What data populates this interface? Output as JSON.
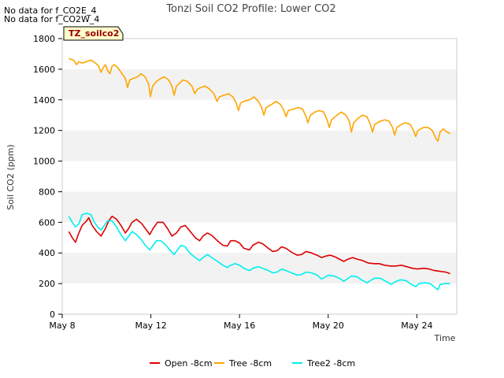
{
  "notes": [
    "No data for f_CO2E_4",
    "No data for f_CO2W_4"
  ],
  "badge": "TZ_soilco2",
  "chart_data": {
    "type": "line",
    "title": "Tonzi Soil CO2 Profile: Lower CO2",
    "xlabel": "Time",
    "ylabel": "Soil CO2 (ppm)",
    "ylim": [
      0,
      1800
    ],
    "xlim": [
      8,
      25.8
    ],
    "x_unit": "day of May",
    "yticks": [
      0,
      200,
      400,
      600,
      800,
      1000,
      1200,
      1400,
      1600,
      1800
    ],
    "xticks": [
      {
        "value": 8,
        "label": "May 8"
      },
      {
        "value": 12,
        "label": "May 12"
      },
      {
        "value": 16,
        "label": "May 16"
      },
      {
        "value": 20,
        "label": "May 20"
      },
      {
        "value": 24,
        "label": "May 24"
      }
    ],
    "grid": "alternating horizontal bands",
    "legend_position": "bottom",
    "series": [
      {
        "name": "Open -8cm",
        "color": "#dd0000",
        "points": [
          [
            8.3,
            540
          ],
          [
            8.45,
            500
          ],
          [
            8.6,
            470
          ],
          [
            8.75,
            530
          ],
          [
            8.9,
            580
          ],
          [
            9.1,
            610
          ],
          [
            9.2,
            630
          ],
          [
            9.35,
            580
          ],
          [
            9.55,
            540
          ],
          [
            9.75,
            510
          ],
          [
            9.95,
            560
          ],
          [
            10.1,
            610
          ],
          [
            10.25,
            640
          ],
          [
            10.45,
            620
          ],
          [
            10.65,
            580
          ],
          [
            10.85,
            530
          ],
          [
            11.0,
            560
          ],
          [
            11.15,
            600
          ],
          [
            11.35,
            620
          ],
          [
            11.6,
            590
          ],
          [
            11.8,
            550
          ],
          [
            11.95,
            520
          ],
          [
            12.1,
            560
          ],
          [
            12.3,
            600
          ],
          [
            12.55,
            600
          ],
          [
            12.75,
            560
          ],
          [
            12.95,
            510
          ],
          [
            13.15,
            530
          ],
          [
            13.35,
            570
          ],
          [
            13.55,
            580
          ],
          [
            13.75,
            545
          ],
          [
            14.0,
            500
          ],
          [
            14.2,
            480
          ],
          [
            14.35,
            510
          ],
          [
            14.55,
            530
          ],
          [
            14.75,
            515
          ],
          [
            15.0,
            480
          ],
          [
            15.25,
            450
          ],
          [
            15.45,
            445
          ],
          [
            15.6,
            480
          ],
          [
            15.8,
            480
          ],
          [
            16.0,
            465
          ],
          [
            16.2,
            430
          ],
          [
            16.45,
            420
          ],
          [
            16.6,
            450
          ],
          [
            16.85,
            470
          ],
          [
            17.05,
            460
          ],
          [
            17.3,
            430
          ],
          [
            17.5,
            410
          ],
          [
            17.7,
            415
          ],
          [
            17.9,
            440
          ],
          [
            18.1,
            430
          ],
          [
            18.35,
            405
          ],
          [
            18.6,
            385
          ],
          [
            18.8,
            390
          ],
          [
            19.0,
            410
          ],
          [
            19.25,
            400
          ],
          [
            19.5,
            385
          ],
          [
            19.7,
            370
          ],
          [
            19.9,
            380
          ],
          [
            20.1,
            385
          ],
          [
            20.3,
            375
          ],
          [
            20.5,
            360
          ],
          [
            20.7,
            345
          ],
          [
            20.9,
            360
          ],
          [
            21.1,
            370
          ],
          [
            21.3,
            360
          ],
          [
            21.55,
            350
          ],
          [
            21.8,
            335
          ],
          [
            22.05,
            330
          ],
          [
            22.3,
            330
          ],
          [
            22.55,
            320
          ],
          [
            22.8,
            315
          ],
          [
            23.05,
            315
          ],
          [
            23.3,
            320
          ],
          [
            23.55,
            310
          ],
          [
            23.8,
            300
          ],
          [
            24.05,
            295
          ],
          [
            24.3,
            300
          ],
          [
            24.55,
            295
          ],
          [
            24.8,
            285
          ],
          [
            25.05,
            280
          ],
          [
            25.3,
            275
          ],
          [
            25.5,
            265
          ]
        ]
      },
      {
        "name": "Tree -8cm",
        "color": "#ffa500",
        "points": [
          [
            8.3,
            1670
          ],
          [
            8.5,
            1660
          ],
          [
            8.65,
            1630
          ],
          [
            8.75,
            1650
          ],
          [
            8.9,
            1640
          ],
          [
            9.1,
            1650
          ],
          [
            9.3,
            1660
          ],
          [
            9.5,
            1640
          ],
          [
            9.65,
            1620
          ],
          [
            9.75,
            1580
          ],
          [
            9.85,
            1610
          ],
          [
            9.95,
            1630
          ],
          [
            10.05,
            1590
          ],
          [
            10.15,
            1570
          ],
          [
            10.25,
            1620
          ],
          [
            10.35,
            1630
          ],
          [
            10.5,
            1610
          ],
          [
            10.7,
            1570
          ],
          [
            10.85,
            1540
          ],
          [
            10.95,
            1480
          ],
          [
            11.05,
            1530
          ],
          [
            11.2,
            1540
          ],
          [
            11.4,
            1550
          ],
          [
            11.55,
            1570
          ],
          [
            11.75,
            1550
          ],
          [
            11.9,
            1500
          ],
          [
            11.98,
            1420
          ],
          [
            12.08,
            1490
          ],
          [
            12.25,
            1520
          ],
          [
            12.45,
            1540
          ],
          [
            12.6,
            1550
          ],
          [
            12.8,
            1530
          ],
          [
            12.95,
            1490
          ],
          [
            13.05,
            1430
          ],
          [
            13.15,
            1490
          ],
          [
            13.3,
            1510
          ],
          [
            13.45,
            1530
          ],
          [
            13.65,
            1520
          ],
          [
            13.85,
            1490
          ],
          [
            13.98,
            1440
          ],
          [
            14.1,
            1470
          ],
          [
            14.25,
            1480
          ],
          [
            14.45,
            1490
          ],
          [
            14.65,
            1470
          ],
          [
            14.85,
            1440
          ],
          [
            14.98,
            1390
          ],
          [
            15.1,
            1420
          ],
          [
            15.3,
            1430
          ],
          [
            15.5,
            1440
          ],
          [
            15.7,
            1420
          ],
          [
            15.85,
            1380
          ],
          [
            15.95,
            1330
          ],
          [
            16.05,
            1380
          ],
          [
            16.2,
            1390
          ],
          [
            16.45,
            1400
          ],
          [
            16.65,
            1420
          ],
          [
            16.85,
            1390
          ],
          [
            17.0,
            1350
          ],
          [
            17.1,
            1300
          ],
          [
            17.2,
            1350
          ],
          [
            17.45,
            1370
          ],
          [
            17.65,
            1390
          ],
          [
            17.85,
            1370
          ],
          [
            18.0,
            1330
          ],
          [
            18.1,
            1290
          ],
          [
            18.2,
            1330
          ],
          [
            18.45,
            1340
          ],
          [
            18.65,
            1350
          ],
          [
            18.85,
            1340
          ],
          [
            19.0,
            1290
          ],
          [
            19.08,
            1250
          ],
          [
            19.2,
            1300
          ],
          [
            19.4,
            1320
          ],
          [
            19.6,
            1330
          ],
          [
            19.8,
            1320
          ],
          [
            19.95,
            1270
          ],
          [
            20.05,
            1220
          ],
          [
            20.15,
            1270
          ],
          [
            20.4,
            1300
          ],
          [
            20.6,
            1320
          ],
          [
            20.8,
            1300
          ],
          [
            20.95,
            1260
          ],
          [
            21.05,
            1190
          ],
          [
            21.15,
            1250
          ],
          [
            21.35,
            1280
          ],
          [
            21.55,
            1300
          ],
          [
            21.75,
            1290
          ],
          [
            21.9,
            1240
          ],
          [
            22.0,
            1190
          ],
          [
            22.1,
            1240
          ],
          [
            22.35,
            1260
          ],
          [
            22.55,
            1270
          ],
          [
            22.75,
            1260
          ],
          [
            22.9,
            1220
          ],
          [
            23.0,
            1170
          ],
          [
            23.1,
            1220
          ],
          [
            23.3,
            1240
          ],
          [
            23.5,
            1250
          ],
          [
            23.7,
            1240
          ],
          [
            23.85,
            1200
          ],
          [
            23.95,
            1160
          ],
          [
            24.05,
            1200
          ],
          [
            24.3,
            1220
          ],
          [
            24.5,
            1220
          ],
          [
            24.7,
            1200
          ],
          [
            24.85,
            1150
          ],
          [
            24.95,
            1130
          ],
          [
            25.05,
            1190
          ],
          [
            25.2,
            1210
          ],
          [
            25.35,
            1190
          ],
          [
            25.5,
            1180
          ]
        ]
      },
      {
        "name": "Tree2 -8cm",
        "color": "#00eeee",
        "points": [
          [
            8.3,
            640
          ],
          [
            8.45,
            600
          ],
          [
            8.6,
            570
          ],
          [
            8.75,
            590
          ],
          [
            8.9,
            650
          ],
          [
            9.1,
            660
          ],
          [
            9.3,
            650
          ],
          [
            9.45,
            600
          ],
          [
            9.6,
            570
          ],
          [
            9.75,
            550
          ],
          [
            9.9,
            580
          ],
          [
            10.05,
            610
          ],
          [
            10.25,
            610
          ],
          [
            10.45,
            570
          ],
          [
            10.65,
            520
          ],
          [
            10.85,
            480
          ],
          [
            11.0,
            510
          ],
          [
            11.15,
            540
          ],
          [
            11.35,
            520
          ],
          [
            11.55,
            490
          ],
          [
            11.75,
            450
          ],
          [
            11.95,
            420
          ],
          [
            12.05,
            440
          ],
          [
            12.25,
            480
          ],
          [
            12.45,
            480
          ],
          [
            12.65,
            455
          ],
          [
            12.85,
            420
          ],
          [
            13.05,
            390
          ],
          [
            13.2,
            420
          ],
          [
            13.35,
            450
          ],
          [
            13.55,
            440
          ],
          [
            13.75,
            400
          ],
          [
            14.0,
            370
          ],
          [
            14.2,
            350
          ],
          [
            14.35,
            370
          ],
          [
            14.55,
            390
          ],
          [
            14.75,
            370
          ],
          [
            15.0,
            345
          ],
          [
            15.25,
            320
          ],
          [
            15.45,
            305
          ],
          [
            15.6,
            320
          ],
          [
            15.8,
            330
          ],
          [
            16.0,
            320
          ],
          [
            16.2,
            300
          ],
          [
            16.45,
            285
          ],
          [
            16.6,
            300
          ],
          [
            16.85,
            310
          ],
          [
            17.05,
            300
          ],
          [
            17.3,
            285
          ],
          [
            17.5,
            270
          ],
          [
            17.7,
            275
          ],
          [
            17.9,
            295
          ],
          [
            18.1,
            285
          ],
          [
            18.35,
            270
          ],
          [
            18.6,
            255
          ],
          [
            18.8,
            260
          ],
          [
            19.0,
            275
          ],
          [
            19.25,
            270
          ],
          [
            19.5,
            255
          ],
          [
            19.7,
            230
          ],
          [
            19.85,
            240
          ],
          [
            20.0,
            255
          ],
          [
            20.25,
            250
          ],
          [
            20.5,
            235
          ],
          [
            20.7,
            215
          ],
          [
            20.85,
            230
          ],
          [
            21.05,
            250
          ],
          [
            21.3,
            245
          ],
          [
            21.5,
            225
          ],
          [
            21.75,
            205
          ],
          [
            21.9,
            220
          ],
          [
            22.1,
            235
          ],
          [
            22.35,
            235
          ],
          [
            22.6,
            215
          ],
          [
            22.85,
            195
          ],
          [
            23.0,
            210
          ],
          [
            23.25,
            225
          ],
          [
            23.5,
            220
          ],
          [
            23.75,
            195
          ],
          [
            23.95,
            180
          ],
          [
            24.1,
            200
          ],
          [
            24.35,
            205
          ],
          [
            24.6,
            200
          ],
          [
            24.85,
            170
          ],
          [
            24.95,
            160
          ],
          [
            25.05,
            195
          ],
          [
            25.3,
            200
          ],
          [
            25.5,
            200
          ]
        ]
      }
    ]
  }
}
